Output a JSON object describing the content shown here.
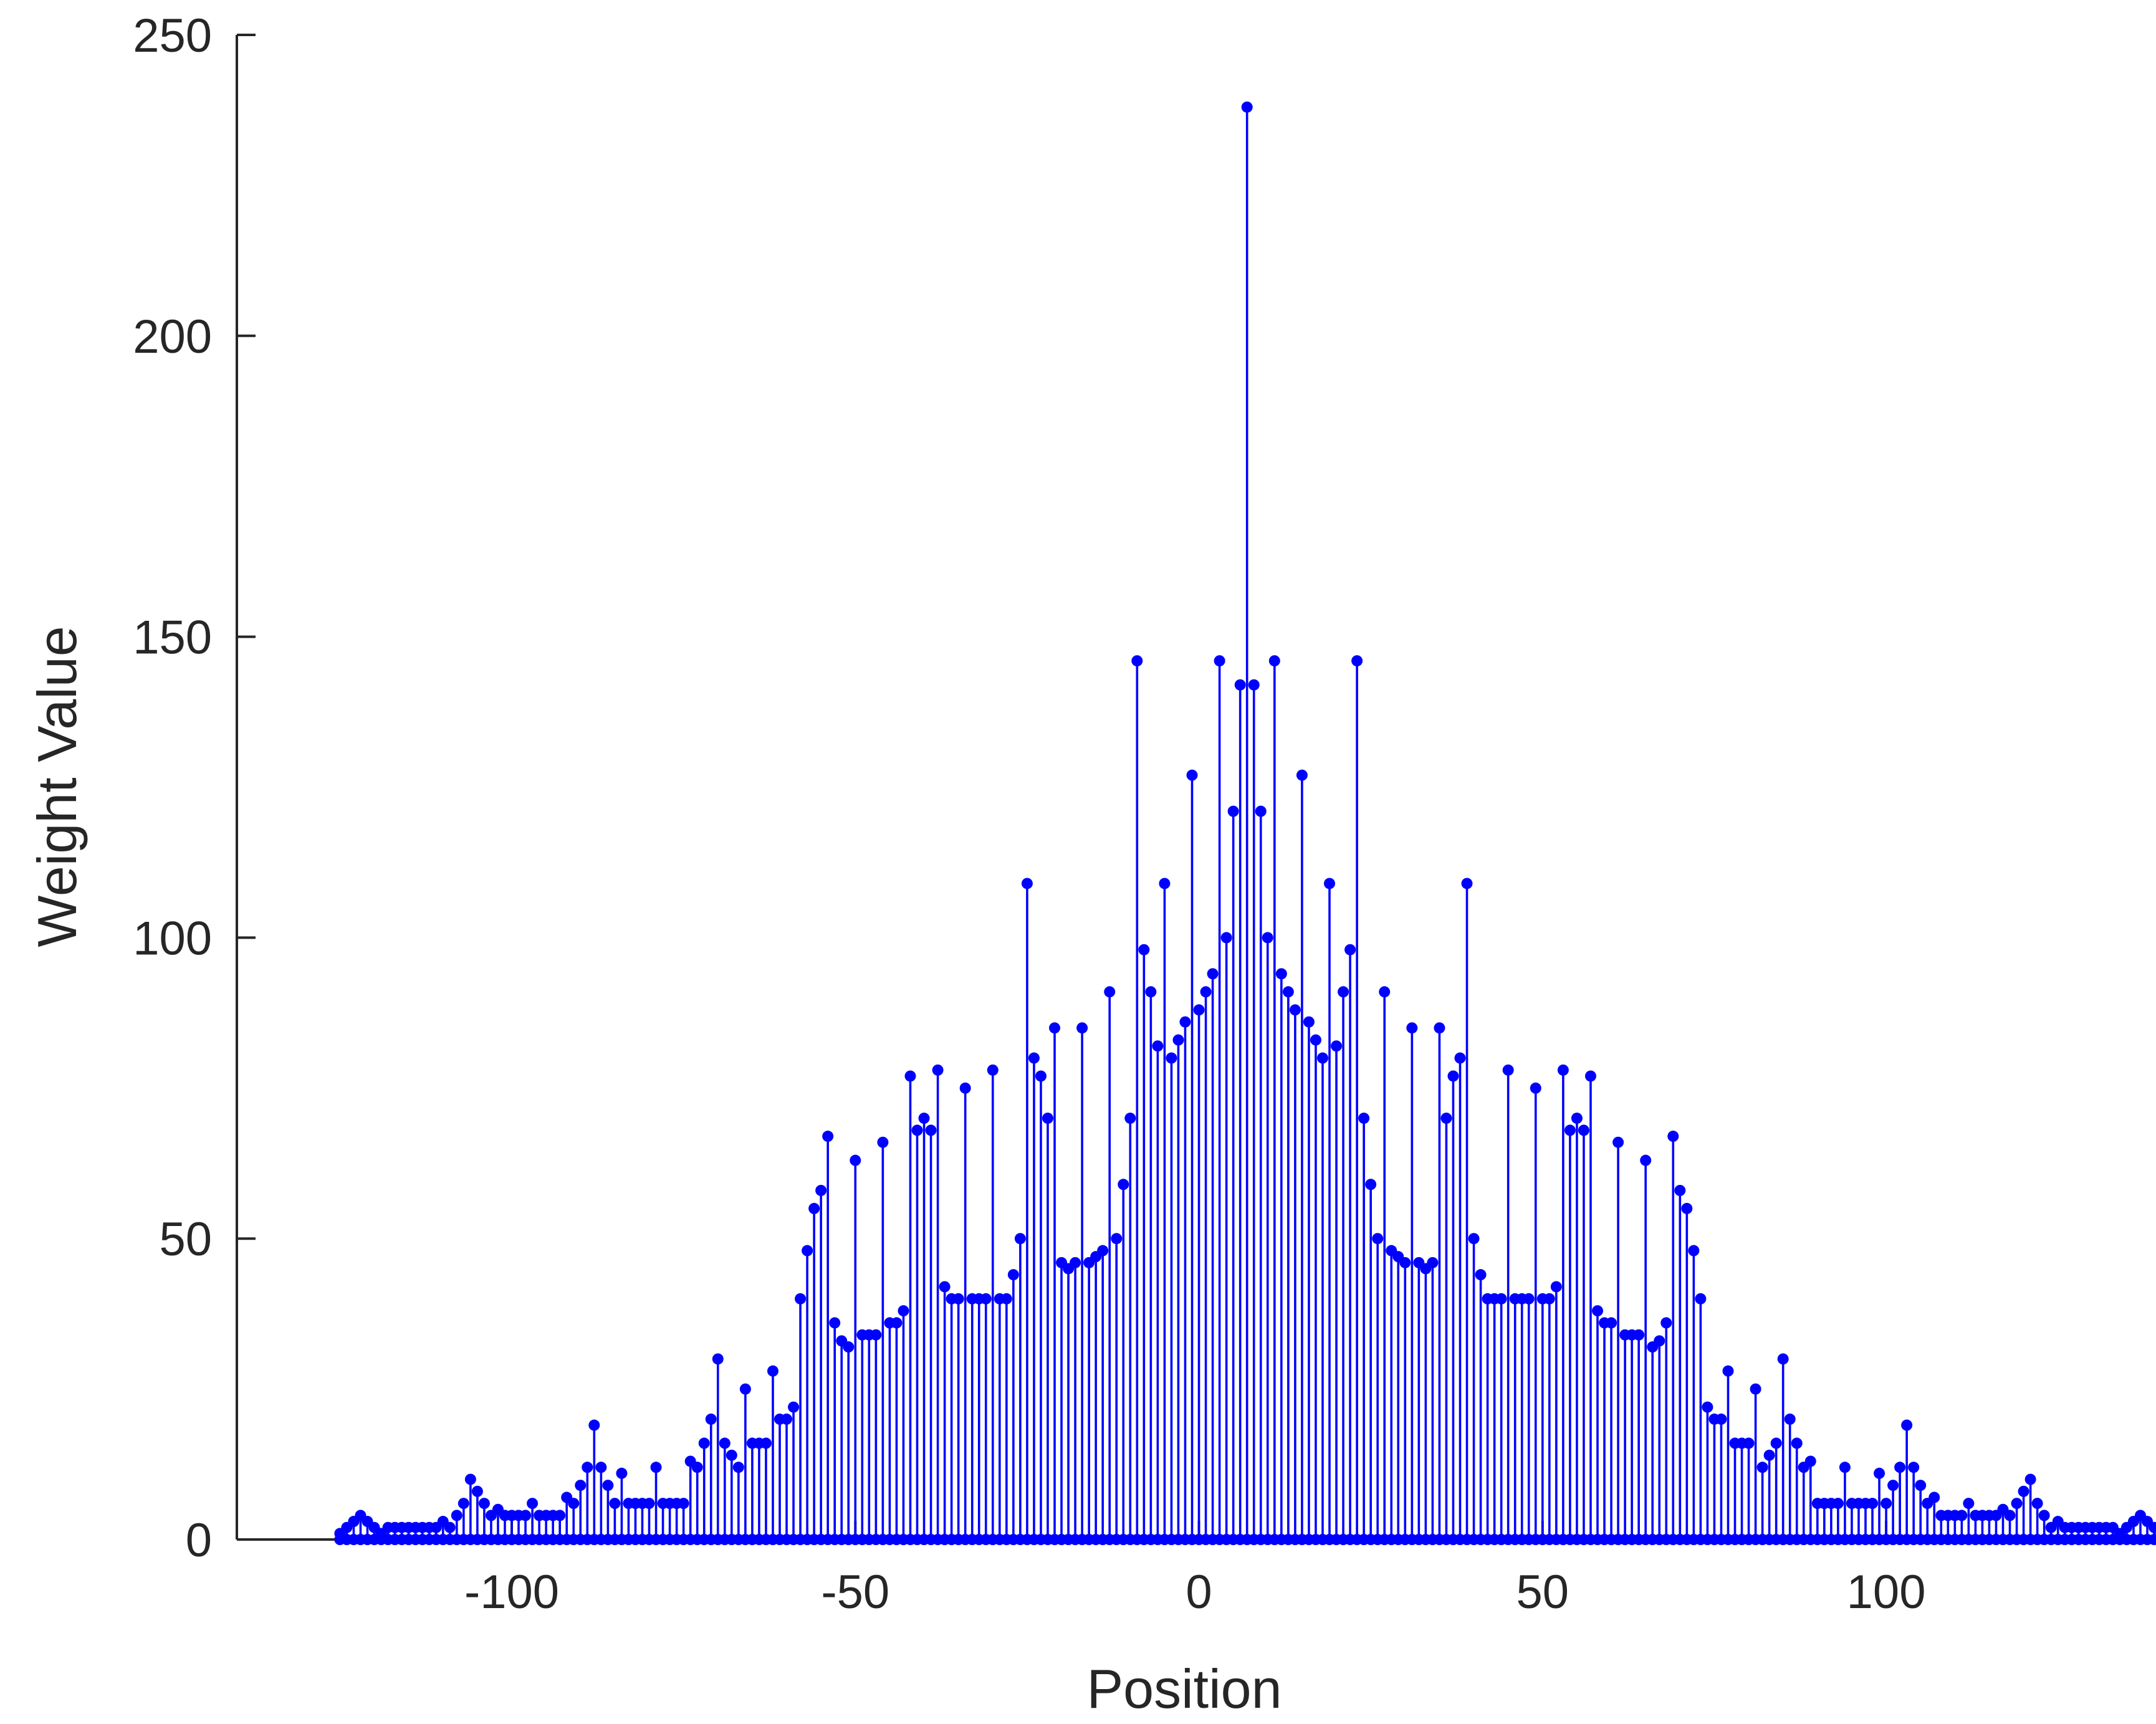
{
  "chart_data": {
    "type": "stem",
    "xlabel": "Position",
    "ylabel": "Weight Value",
    "xlim": [
      -140,
      137
    ],
    "ylim": [
      0,
      250
    ],
    "xticks": [
      -100,
      -50,
      0,
      50,
      100
    ],
    "yticks": [
      0,
      50,
      100,
      150,
      200,
      250
    ],
    "grid": false,
    "legend": "none",
    "colors": {
      "series": "#0000ff",
      "axis": "#262626"
    },
    "series": [
      {
        "x_start": -125,
        "x_step": 1,
        "values": [
          1,
          2,
          3,
          4,
          3,
          2,
          1,
          2,
          2,
          2,
          2,
          2,
          2,
          2,
          2,
          3,
          2,
          4,
          6,
          10,
          8,
          6,
          4,
          5,
          4,
          4,
          4,
          4,
          6,
          4,
          4,
          4,
          4,
          7,
          6,
          9,
          12,
          19,
          12,
          9,
          6,
          11,
          6,
          6,
          6,
          6,
          12,
          6,
          6,
          6,
          6,
          13,
          12,
          16,
          20,
          30,
          16,
          14,
          12,
          25,
          16,
          16,
          16,
          28,
          20,
          20,
          22,
          40,
          48,
          55,
          58,
          67,
          36,
          33,
          32,
          63,
          34,
          34,
          34,
          66,
          36,
          36,
          38,
          77,
          68,
          70,
          68,
          78,
          42,
          40,
          40,
          75,
          40,
          40,
          40,
          78,
          40,
          40,
          44,
          50,
          109,
          80,
          77,
          70,
          85,
          46,
          45,
          46,
          85,
          46,
          47,
          48,
          91,
          50,
          59,
          70,
          146,
          98,
          91,
          82,
          109,
          80,
          83,
          86,
          127,
          88,
          91,
          94,
          146,
          100,
          121,
          142,
          238,
          142,
          121,
          100,
          146,
          94,
          91,
          88,
          127,
          86,
          83,
          80,
          109,
          82,
          91,
          98,
          146,
          70,
          59,
          50,
          91,
          48,
          47,
          46,
          85,
          46,
          45,
          46,
          85,
          70,
          77,
          80,
          109,
          50,
          44,
          40,
          40,
          40,
          78,
          40,
          40,
          40,
          75,
          40,
          40,
          42,
          78,
          68,
          70,
          68,
          77,
          38,
          36,
          36,
          66,
          34,
          34,
          34,
          63,
          32,
          33,
          36,
          67,
          58,
          55,
          48,
          40,
          22,
          20,
          20,
          28,
          16,
          16,
          16,
          25,
          12,
          14,
          16,
          30,
          20,
          16,
          12,
          13,
          6,
          6,
          6,
          6,
          12,
          6,
          6,
          6,
          6,
          11,
          6,
          9,
          12,
          19,
          12,
          9,
          6,
          7,
          4,
          4,
          4,
          4,
          6,
          4,
          4,
          4,
          4,
          5,
          4,
          6,
          8,
          10,
          6,
          4,
          2,
          3,
          2,
          2,
          2,
          2,
          2,
          2,
          2,
          2,
          1,
          2,
          3,
          4,
          3,
          2,
          1
        ]
      }
    ]
  }
}
